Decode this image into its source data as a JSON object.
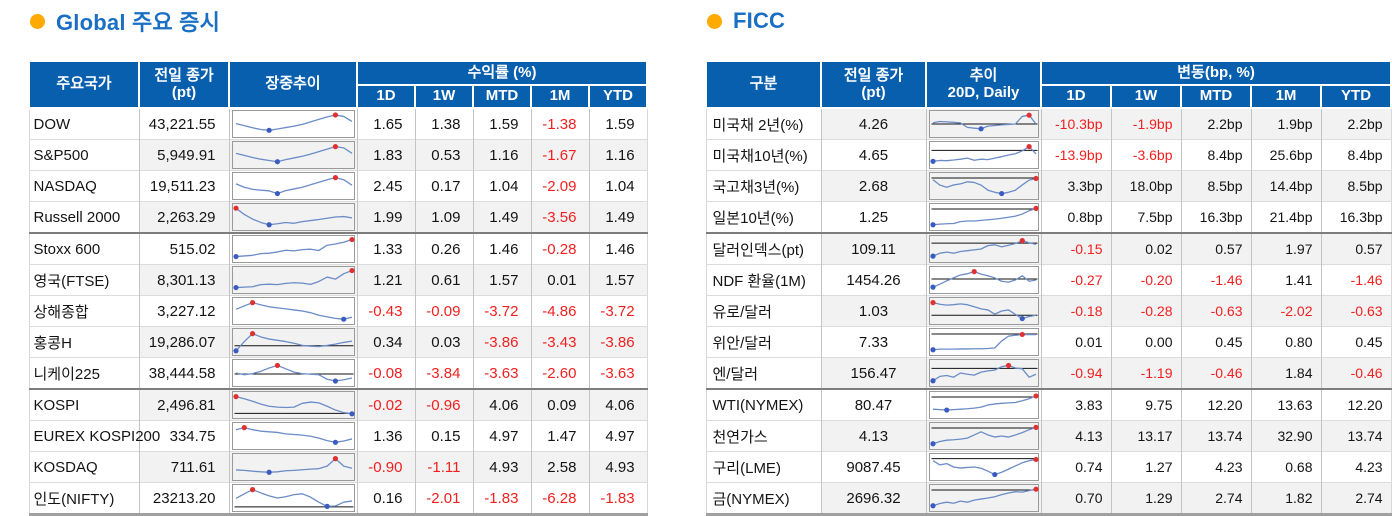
{
  "colors": {
    "header_bg": "#085fae",
    "title_text": "#1a6fc4",
    "bullet": "#ffaa00",
    "negative": "#f21f1f",
    "row_stripe": "#f2f2f2",
    "spark_line": "#6b8cc7",
    "spark_baseline": "#111111",
    "spark_max_dot": "#e03030",
    "spark_min_dot": "#3a5bc0"
  },
  "tables": [
    {
      "title": "Global 주요 증시",
      "headers": {
        "name": "주요국가",
        "close_lines": [
          "전일 종가",
          "(pt)"
        ],
        "trend_lines": [
          "장중추이"
        ],
        "group": "수익률 (%)",
        "periods": [
          "1D",
          "1W",
          "MTD",
          "1M",
          "YTD"
        ]
      },
      "rows": [
        {
          "name": "DOW",
          "close": "43,221.55",
          "values": [
            "1.65",
            "1.38",
            "1.59",
            "-1.38",
            "1.59"
          ],
          "spark": {
            "y": [
              0.52,
              0.42,
              0.32,
              0.24,
              0.2,
              0.26,
              0.33,
              0.4,
              0.48,
              0.6,
              0.72,
              0.84,
              0.93,
              0.86,
              0.62
            ],
            "max": 12,
            "min": 4,
            "base": null
          }
        },
        {
          "name": "S&P500",
          "close": "5,949.91",
          "values": [
            "1.83",
            "0.53",
            "1.16",
            "-1.67",
            "1.16"
          ],
          "spark": {
            "y": [
              0.58,
              0.48,
              0.38,
              0.3,
              0.24,
              0.18,
              0.28,
              0.36,
              0.44,
              0.54,
              0.66,
              0.78,
              0.9,
              0.84,
              0.58
            ],
            "max": 12,
            "min": 5,
            "base": null
          }
        },
        {
          "name": "NASDAQ",
          "close": "19,511.23",
          "values": [
            "2.45",
            "0.17",
            "1.04",
            "-2.09",
            "1.04"
          ],
          "spark": {
            "y": [
              0.6,
              0.44,
              0.34,
              0.3,
              0.27,
              0.14,
              0.28,
              0.36,
              0.44,
              0.56,
              0.68,
              0.8,
              0.9,
              0.8,
              0.54
            ],
            "max": 12,
            "min": 5,
            "base": null
          }
        },
        {
          "name": "Russell 2000",
          "close": "2,263.29",
          "values": [
            "1.99",
            "1.09",
            "1.49",
            "-3.56",
            "1.49"
          ],
          "spark": {
            "y": [
              0.92,
              0.62,
              0.4,
              0.24,
              0.13,
              0.18,
              0.24,
              0.2,
              0.28,
              0.33,
              0.38,
              0.44,
              0.5,
              0.52,
              0.46
            ],
            "max": 0,
            "min": 4,
            "base": null
          }
        },
        {
          "name": "Stoxx 600",
          "close": "515.02",
          "values": [
            "1.33",
            "0.26",
            "1.46",
            "-0.28",
            "1.46"
          ],
          "sep": true,
          "spark": {
            "y": [
              0.14,
              0.17,
              0.2,
              0.28,
              0.3,
              0.36,
              0.44,
              0.41,
              0.47,
              0.49,
              0.43,
              0.68,
              0.74,
              0.82,
              0.95
            ],
            "max": 14,
            "min": 0,
            "base": null
          }
        },
        {
          "name": "영국(FTSE)",
          "close": "8,301.13",
          "values": [
            "1.21",
            "0.61",
            "1.57",
            "0.01",
            "1.57"
          ],
          "spark": {
            "y": [
              0.14,
              0.16,
              0.18,
              0.28,
              0.3,
              0.28,
              0.34,
              0.37,
              0.35,
              0.29,
              0.43,
              0.64,
              0.54,
              0.8,
              0.95
            ],
            "max": 14,
            "min": 0,
            "base": null
          }
        },
        {
          "name": "상해종합",
          "close": "3,227.12",
          "values": [
            "-0.43",
            "-0.09",
            "-3.72",
            "-4.86",
            "-3.72"
          ],
          "spark": {
            "y": [
              0.58,
              0.74,
              0.9,
              0.79,
              0.7,
              0.65,
              0.6,
              0.55,
              0.5,
              0.42,
              0.3,
              0.22,
              0.15,
              0.11,
              0.2
            ],
            "max": 2,
            "min": 13,
            "base": null
          }
        },
        {
          "name": "홍콩H",
          "close": "19,286.07",
          "values": [
            "0.34",
            "0.03",
            "-3.86",
            "-3.43",
            "-3.86"
          ],
          "spark": {
            "y": [
              0.08,
              0.52,
              0.9,
              0.74,
              0.64,
              0.58,
              0.52,
              0.44,
              0.34,
              0.3,
              0.28,
              0.34,
              0.4,
              0.48,
              0.54
            ],
            "max": 2,
            "min": 0,
            "base": 0.32
          }
        },
        {
          "name": "니케이225",
          "close": "38,444.58",
          "values": [
            "-0.08",
            "-3.84",
            "-3.63",
            "-2.60",
            "-3.63"
          ],
          "spark": {
            "y": [
              0.5,
              0.42,
              0.47,
              0.58,
              0.74,
              0.86,
              0.7,
              0.54,
              0.47,
              0.44,
              0.42,
              0.2,
              0.12,
              0.18,
              0.26
            ],
            "max": 5,
            "min": 12,
            "base": 0.45
          }
        },
        {
          "name": "KOSPI",
          "close": "2,496.81",
          "values": [
            "-0.02",
            "-0.96",
            "4.06",
            "0.09",
            "4.06"
          ],
          "sep": true,
          "spark": {
            "y": [
              0.9,
              0.8,
              0.68,
              0.54,
              0.44,
              0.4,
              0.38,
              0.4,
              0.58,
              0.64,
              0.6,
              0.44,
              0.26,
              0.14,
              0.08
            ],
            "max": 0,
            "min": 14,
            "base": 0.1
          }
        },
        {
          "name": "EUREX KOSPI200",
          "close": "334.75",
          "values": [
            "1.36",
            "0.15",
            "4.97",
            "1.47",
            "4.97"
          ],
          "spark": {
            "y": [
              0.8,
              0.9,
              0.8,
              0.73,
              0.7,
              0.67,
              0.6,
              0.57,
              0.54,
              0.49,
              0.4,
              0.28,
              0.2,
              0.26,
              0.36
            ],
            "max": 1,
            "min": 12,
            "base": null
          }
        },
        {
          "name": "KOSDAQ",
          "close": "711.61",
          "values": [
            "-0.90",
            "-1.11",
            "4.93",
            "2.58",
            "4.93"
          ],
          "spark": {
            "y": [
              0.36,
              0.34,
              0.3,
              0.27,
              0.25,
              0.27,
              0.32,
              0.34,
              0.37,
              0.4,
              0.42,
              0.54,
              0.9,
              0.54,
              0.44
            ],
            "max": 12,
            "min": 4,
            "base": null
          }
        },
        {
          "name": "인도(NIFTY)",
          "close": "23213.20",
          "values": [
            "0.16",
            "-2.01",
            "-1.83",
            "-6.28",
            "-1.83"
          ],
          "spark": {
            "y": [
              0.48,
              0.7,
              0.9,
              0.74,
              0.6,
              0.5,
              0.56,
              0.66,
              0.7,
              0.54,
              0.3,
              0.1,
              0.12,
              0.3,
              0.36
            ],
            "max": 2,
            "min": 11,
            "base": 0.08
          }
        }
      ]
    },
    {
      "title": "FICC",
      "headers": {
        "name": "구분",
        "close_lines": [
          "전일 종가",
          "(pt)"
        ],
        "trend_lines": [
          "추이",
          "20D, Daily"
        ],
        "group": "변동(bp, %)",
        "periods": [
          "1D",
          "1W",
          "MTD",
          "1M",
          "YTD"
        ]
      },
      "rows": [
        {
          "name": "미국채 2년(%)",
          "close": "4.26",
          "values": [
            "-10.3bp",
            "-1.9bp",
            "2.2bp",
            "1.9bp",
            "2.2bp"
          ],
          "spark": {
            "y": [
              0.56,
              0.62,
              0.6,
              0.58,
              0.55,
              0.34,
              0.3,
              0.27,
              0.4,
              0.43,
              0.46,
              0.48,
              0.5,
              0.86,
              0.92,
              0.5
            ],
            "max": 14,
            "min": 7,
            "base": 0.5
          }
        },
        {
          "name": "미국채10년(%)",
          "close": "4.65",
          "values": [
            "-13.9bp",
            "-3.6bp",
            "8.4bp",
            "25.6bp",
            "8.4bp"
          ],
          "spark": {
            "y": [
              0.2,
              0.24,
              0.23,
              0.26,
              0.3,
              0.35,
              0.25,
              0.3,
              0.28,
              0.35,
              0.42,
              0.5,
              0.56,
              0.7,
              0.9,
              0.55
            ],
            "max": 14,
            "min": 0,
            "base": 0.72
          }
        },
        {
          "name": "국고채3년(%)",
          "close": "2.68",
          "values": [
            "3.3bp",
            "18.0bp",
            "8.5bp",
            "14.4bp",
            "8.5bp"
          ],
          "spark": {
            "y": [
              0.8,
              0.54,
              0.44,
              0.55,
              0.6,
              0.7,
              0.67,
              0.54,
              0.3,
              0.2,
              0.14,
              0.2,
              0.3,
              0.55,
              0.78,
              0.86
            ],
            "max": 15,
            "min": 10,
            "base": 0.88
          }
        },
        {
          "name": "일본10년(%)",
          "close": "1.25",
          "values": [
            "0.8bp",
            "7.5bp",
            "16.3bp",
            "21.4bp",
            "16.3bp"
          ],
          "spark": {
            "y": [
              0.13,
              0.16,
              0.18,
              0.19,
              0.28,
              0.31,
              0.31,
              0.34,
              0.37,
              0.4,
              0.44,
              0.49,
              0.54,
              0.64,
              0.8,
              0.91
            ],
            "max": 15,
            "min": 0,
            "base": 0.88
          }
        },
        {
          "name": "달러인덱스(pt)",
          "close": "109.11",
          "values": [
            "-0.15",
            "0.02",
            "0.57",
            "1.97",
            "0.57"
          ],
          "sep": true,
          "spark": {
            "y": [
              0.16,
              0.3,
              0.35,
              0.3,
              0.38,
              0.42,
              0.46,
              0.5,
              0.66,
              0.7,
              0.6,
              0.68,
              0.76,
              0.9,
              0.8,
              0.72
            ],
            "max": 13,
            "min": 0,
            "base": 0.78
          }
        },
        {
          "name": "NDF 환율(1M)",
          "close": "1454.26",
          "values": [
            "-0.27",
            "-0.20",
            "-1.46",
            "1.41",
            "-1.46"
          ],
          "spark": {
            "y": [
              0.16,
              0.3,
              0.46,
              0.6,
              0.74,
              0.8,
              0.9,
              0.78,
              0.7,
              0.6,
              0.44,
              0.4,
              0.5,
              0.7,
              0.44,
              0.5
            ],
            "max": 6,
            "min": 0,
            "base": 0.55
          }
        },
        {
          "name": "유로/달러",
          "close": "1.03",
          "values": [
            "-0.18",
            "-0.28",
            "-0.63",
            "-2.02",
            "-0.63"
          ],
          "spark": {
            "y": [
              0.9,
              0.82,
              0.78,
              0.8,
              0.84,
              0.8,
              0.7,
              0.6,
              0.55,
              0.35,
              0.5,
              0.55,
              0.34,
              0.14,
              0.24,
              0.3
            ],
            "max": 0,
            "min": 13,
            "base": 0.3
          }
        },
        {
          "name": "위안/달러",
          "close": "7.33",
          "values": [
            "0.01",
            "0.00",
            "0.45",
            "0.80",
            "0.45"
          ],
          "spark": {
            "y": [
              0.13,
              0.16,
              0.16,
              0.16,
              0.17,
              0.17,
              0.18,
              0.18,
              0.19,
              0.22,
              0.55,
              0.78,
              0.82,
              0.86,
              0.85,
              0.85
            ],
            "max": 13,
            "min": 0,
            "base": 0.88
          }
        },
        {
          "name": "엔/달러",
          "close": "156.47",
          "values": [
            "-0.94",
            "-1.19",
            "-0.46",
            "1.84",
            "-0.46"
          ],
          "spark": {
            "y": [
              0.13,
              0.34,
              0.38,
              0.3,
              0.5,
              0.44,
              0.4,
              0.54,
              0.6,
              0.64,
              0.8,
              0.86,
              0.74,
              0.7,
              0.3,
              0.44
            ],
            "max": 11,
            "min": 0,
            "base": 0.72
          }
        },
        {
          "name": "WTI(NYMEX)",
          "close": "80.47",
          "values": [
            "3.83",
            "9.75",
            "12.20",
            "13.63",
            "12.20"
          ],
          "sep": true,
          "spark": {
            "y": [
              0.3,
              0.28,
              0.26,
              0.28,
              0.3,
              0.32,
              0.35,
              0.4,
              0.5,
              0.55,
              0.58,
              0.6,
              0.62,
              0.7,
              0.8,
              0.93
            ],
            "max": 15,
            "min": 2,
            "base": 0.88
          }
        },
        {
          "name": "천연가스",
          "close": "4.13",
          "values": [
            "4.13",
            "13.17",
            "13.74",
            "32.90",
            "13.74"
          ],
          "spark": {
            "y": [
              0.13,
              0.24,
              0.3,
              0.32,
              0.35,
              0.4,
              0.55,
              0.7,
              0.55,
              0.45,
              0.5,
              0.45,
              0.55,
              0.66,
              0.8,
              0.91
            ],
            "max": 15,
            "min": 0,
            "base": 0.88
          }
        },
        {
          "name": "구리(LME)",
          "close": "9087.45",
          "values": [
            "0.74",
            "1.27",
            "4.23",
            "0.68",
            "4.23"
          ],
          "spark": {
            "y": [
              0.8,
              0.6,
              0.66,
              0.5,
              0.45,
              0.48,
              0.5,
              0.44,
              0.3,
              0.14,
              0.25,
              0.4,
              0.55,
              0.7,
              0.8,
              0.86
            ],
            "max": 15,
            "min": 9,
            "base": 0.9
          }
        },
        {
          "name": "금(NYMEX)",
          "close": "2696.32",
          "values": [
            "0.70",
            "1.29",
            "2.74",
            "1.82",
            "2.74"
          ],
          "spark": {
            "y": [
              0.13,
              0.24,
              0.3,
              0.25,
              0.35,
              0.3,
              0.4,
              0.45,
              0.5,
              0.56,
              0.66,
              0.74,
              0.8,
              0.78,
              0.85,
              0.92
            ],
            "max": 15,
            "min": 0,
            "base": 0.88
          }
        }
      ]
    }
  ]
}
